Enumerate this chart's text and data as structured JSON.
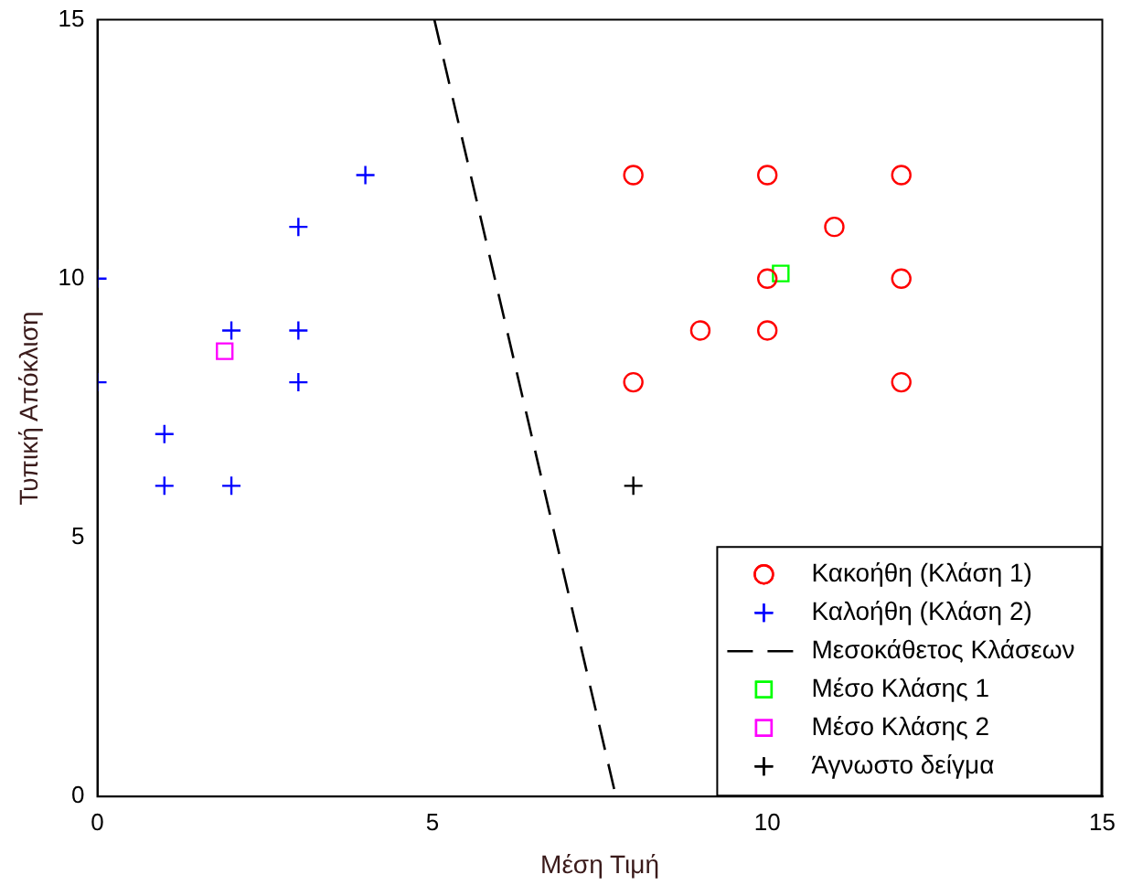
{
  "chart_data": {
    "type": "scatter",
    "xlabel": "Μέση Τιμή",
    "ylabel": "Τυπική Απόκλιση",
    "xlim": [
      0,
      15
    ],
    "ylim": [
      0,
      15
    ],
    "xticks": [
      0,
      5,
      10,
      15
    ],
    "yticks": [
      0,
      5,
      10,
      15
    ],
    "grid": false,
    "legend": "bottom right",
    "series": [
      {
        "name": "Κακοήθη (Κλάση 1)",
        "type": "scatter",
        "marker": "circle",
        "color": "#ff0000",
        "x": [
          8,
          10,
          12,
          11,
          10,
          12,
          9,
          10,
          8,
          12
        ],
        "values": [
          12,
          12,
          12,
          11,
          10,
          10,
          9,
          9,
          8,
          8
        ]
      },
      {
        "name": "Καλοήθη (Κλάση 2)",
        "type": "scatter",
        "marker": "cross",
        "color": "#0000ff",
        "x": [
          4,
          3,
          0,
          2,
          3,
          0,
          3,
          1,
          1,
          2
        ],
        "values": [
          12,
          11,
          10,
          9,
          9,
          8,
          8,
          7,
          6,
          6
        ]
      },
      {
        "name": "Μεσοκάθετος Κλάσεων",
        "type": "line",
        "marker": "none",
        "line_style": "dashed",
        "color": "#000000",
        "x": [
          5.03,
          7.74
        ],
        "values": [
          15,
          0
        ]
      },
      {
        "name": "Μέσο Κλάσης 1",
        "type": "scatter",
        "marker": "square",
        "color": "#00ff00",
        "x": [
          10.2
        ],
        "values": [
          10.1
        ]
      },
      {
        "name": "Μέσο Κλάσης 2",
        "type": "scatter",
        "marker": "square",
        "color": "#ff00ff",
        "x": [
          1.9
        ],
        "values": [
          8.6
        ]
      },
      {
        "name": "Άγνωστο δείγμα",
        "type": "scatter",
        "marker": "cross",
        "color": "#000000",
        "x": [
          8
        ],
        "values": [
          6
        ]
      }
    ]
  }
}
